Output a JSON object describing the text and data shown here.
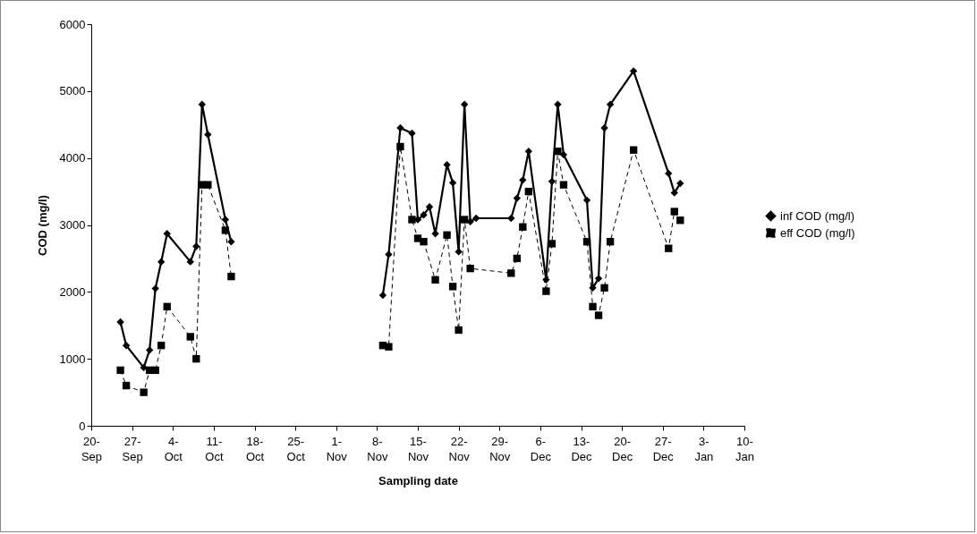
{
  "chart_data": {
    "type": "line",
    "xlabel": "Sampling date",
    "ylabel": "COD (mg/l)",
    "xlim": [
      "2000-09-20",
      "2001-01-10"
    ],
    "xticks": [
      {
        "value": "2000-09-20",
        "label": "20-\nSep"
      },
      {
        "value": "2000-09-27",
        "label": "27-\nSep"
      },
      {
        "value": "2000-10-04",
        "label": "4-\nOct"
      },
      {
        "value": "2000-10-11",
        "label": "11-\nOct"
      },
      {
        "value": "2000-10-18",
        "label": "18-\nOct"
      },
      {
        "value": "2000-10-25",
        "label": "25-\nOct"
      },
      {
        "value": "2000-11-01",
        "label": "1-\nNov"
      },
      {
        "value": "2000-11-08",
        "label": "8-\nNov"
      },
      {
        "value": "2000-11-15",
        "label": "15-\nNov"
      },
      {
        "value": "2000-11-22",
        "label": "22-\nNov"
      },
      {
        "value": "2000-11-29",
        "label": "29-\nNov"
      },
      {
        "value": "2000-12-06",
        "label": "6-\nDec"
      },
      {
        "value": "2000-12-13",
        "label": "13-\nDec"
      },
      {
        "value": "2000-12-20",
        "label": "20-\nDec"
      },
      {
        "value": "2000-12-27",
        "label": "27-\nDec"
      },
      {
        "value": "2001-01-03",
        "label": "3-\nJan"
      },
      {
        "value": "2001-01-10",
        "label": "10-\nJan"
      }
    ],
    "ylim": [
      0,
      6000
    ],
    "yticks": [
      0,
      1000,
      2000,
      3000,
      4000,
      5000,
      6000
    ],
    "grid": false,
    "legend": "right",
    "series": [
      {
        "name": "inf COD (mg/l)",
        "color": "#000000",
        "marker": "diamond",
        "line_style": "solid",
        "x": [
          "2000-09-25",
          "2000-09-26",
          "2000-09-29",
          "2000-09-30",
          "2000-10-01",
          "2000-10-02",
          "2000-10-03",
          "2000-10-07",
          "2000-10-08",
          "2000-10-09",
          "2000-10-10",
          "2000-10-13",
          "2000-10-14",
          "2000-10-25",
          "2000-11-09",
          "2000-11-10",
          "2000-11-12",
          "2000-11-14",
          "2000-11-15",
          "2000-11-16",
          "2000-11-17",
          "2000-11-18",
          "2000-11-20",
          "2000-11-21",
          "2000-11-22",
          "2000-11-23",
          "2000-11-24",
          "2000-11-25",
          "2000-12-01",
          "2000-12-02",
          "2000-12-03",
          "2000-12-04",
          "2000-12-07",
          "2000-12-08",
          "2000-12-09",
          "2000-12-10",
          "2000-12-14",
          "2000-12-15",
          "2000-12-16",
          "2000-12-17",
          "2000-12-18",
          "2000-12-22",
          "2000-12-28",
          "2000-12-29",
          "2000-12-30"
        ],
        "values": [
          1550,
          1200,
          870,
          1130,
          2050,
          2450,
          2870,
          2450,
          2680,
          4800,
          4350,
          3080,
          2750,
          null,
          1950,
          2560,
          4450,
          4370,
          3080,
          3150,
          3270,
          2870,
          3900,
          3630,
          2600,
          4800,
          3050,
          3100,
          3100,
          3400,
          3670,
          4100,
          2180,
          3650,
          4800,
          4050,
          3370,
          2060,
          2200,
          4450,
          4800,
          5300,
          3770,
          3480,
          3620
        ]
      },
      {
        "name": "eff COD (mg/l)",
        "color": "#000000",
        "marker": "square",
        "line_style": "dashed",
        "x": [
          "2000-09-25",
          "2000-09-26",
          "2000-09-29",
          "2000-09-30",
          "2000-10-01",
          "2000-10-02",
          "2000-10-03",
          "2000-10-07",
          "2000-10-08",
          "2000-10-09",
          "2000-10-10",
          "2000-10-13",
          "2000-10-14",
          "2000-10-25",
          "2000-11-09",
          "2000-11-10",
          "2000-11-12",
          "2000-11-14",
          "2000-11-15",
          "2000-11-16",
          "2000-11-18",
          "2000-11-20",
          "2000-11-21",
          "2000-11-22",
          "2000-11-23",
          "2000-11-24",
          "2000-12-01",
          "2000-12-02",
          "2000-12-03",
          "2000-12-04",
          "2000-12-07",
          "2000-12-08",
          "2000-12-09",
          "2000-12-10",
          "2000-12-14",
          "2000-12-15",
          "2000-12-16",
          "2000-12-17",
          "2000-12-18",
          "2000-12-22",
          "2000-12-28",
          "2000-12-29",
          "2000-12-30"
        ],
        "values": [
          830,
          600,
          500,
          830,
          830,
          1200,
          1780,
          1330,
          1000,
          3600,
          3600,
          2920,
          2230,
          null,
          1200,
          1180,
          4170,
          3080,
          2800,
          2750,
          2180,
          2850,
          2080,
          1430,
          3080,
          2350,
          2280,
          2500,
          2970,
          3500,
          2010,
          2720,
          4100,
          3600,
          2750,
          1780,
          1650,
          2060,
          2750,
          4120,
          2650,
          3200,
          3070
        ]
      }
    ]
  }
}
